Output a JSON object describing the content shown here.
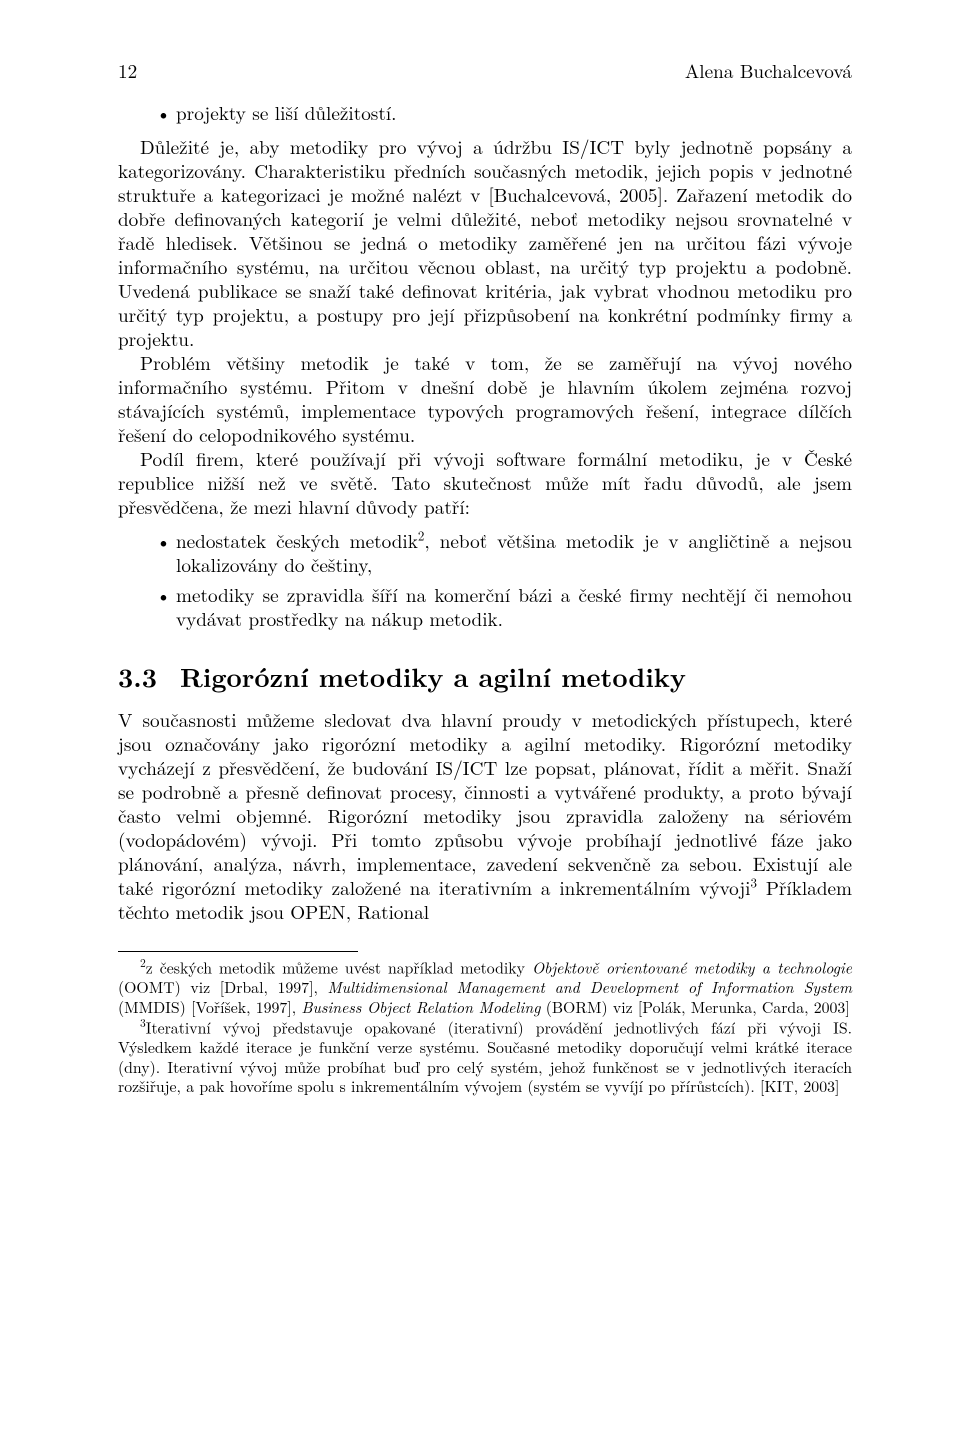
{
  "header": {
    "page_number": "12",
    "running_author": "Alena Buchalcevová"
  },
  "bullets_top": [
    "projekty se liší důležitostí."
  ],
  "para1_first": "Důležité je, aby metodiky pro vývoj a údržbu IS/ICT byly jednotně popsány a kategorizovány. Charakteristiku předních současných metodik, jejich popis v jednotné struktuře a kategorizaci je možné nalézt v [Buchalcevová, 2005]. Zařazení metodik do dobře definovaných kategorií je velmi důležité, neboť metodiky nejsou srovnatelné v řadě hledisek. Většinou se jedná o metodiky zaměřené jen na určitou fázi vývoje informačního systému, na určitou věcnou oblast, na určitý typ projektu a podobně. Uvedená publikace se snaží také definovat kritéria, jak vybrat vhodnou metodiku pro určitý typ projektu, a postupy pro její přizpůsobení na konkrétní podmínky firmy a projektu.",
  "para2": "Problém většiny metodik je také v tom, že se zaměřují na vývoj nového informačního systému. Přitom v dnešní době je hlavním úkolem zejména rozvoj stávajících systémů, implementace typových programových řešení, integrace dílčích řešení do celopodnikového systému.",
  "para3": "Podíl firem, které používají při vývoji software formální metodiku, je v České republice nižší než ve světě. Tato skutečnost může mít řadu důvodů, ale jsem přesvědčena, že mezi hlavní důvody patří:",
  "bullets_mid": [
    {
      "pre": "nedostatek českých metodik",
      "sup": "2",
      "post": ", neboť většina metodik je v angličtině a nejsou lokalizovány do češtiny,"
    },
    {
      "pre": "metodiky se zpravidla šíří na komerční bázi a české firmy nechtějí či nemohou vydávat prostředky na nákup metodik.",
      "sup": "",
      "post": ""
    }
  ],
  "section": {
    "number": "3.3",
    "title": "Rigorózní metodiky a agilní metodiky"
  },
  "para4_pre": "V současnosti můžeme sledovat dva hlavní proudy v metodických přístupech, které jsou označovány jako rigorózní metodiky a agilní metodiky. Rigorózní metodiky vycházejí z přesvědčení, že budování IS/ICT lze popsat, plánovat, řídit a měřit. Snaží se podrobně a přesně definovat procesy, činnosti a vytvářené produkty, a proto bývají často velmi objemné. Rigorózní metodiky jsou zpravidla založeny na sériovém (vodopádovém) vývoji. Při tomto způsobu vývoje probíhají jednotlivé fáze jako plánování, analýza, návrh, implementace, zavedení sekvenčně za sebou. Existují ale také rigorózní metodiky založené na iterativním a inkrementálním vývoji",
  "para4_sup": "3",
  "para4_post": " Příkladem těchto metodik jsou OPEN, Rational",
  "footnotes": {
    "fn2": {
      "num": "2",
      "seg1": "z českých metodik můžeme uvést například metodiky ",
      "it1": "Objektově orientované metodiky a technologie",
      "seg2": " (OOMT) viz [Drbal, 1997], ",
      "it2": "Multidimensional Management and Development of Information System",
      "seg3": " (MMDIS) [Voříšek, 1997], ",
      "it3": "Business Object Relation Modeling",
      "seg4": " (BORM) viz [Polák, Merunka, Carda, 2003]"
    },
    "fn3": {
      "num": "3",
      "text": "Iterativní vývoj představuje opakované (iterativní) provádění jednotlivých fází při vývoji IS. Výsledkem každé iterace je funkční verze systému. Současné metodiky doporučují velmi krátké iterace (dny). Iterativní vývoj může probíhat buď pro celý systém, jehož funkčnost se v jednotlivých iteracích rozšiřuje, a pak hovoříme spolu s inkrementálním vývojem (systém se vyvíjí po přírůstcích). [KIT, 2003]"
    }
  }
}
